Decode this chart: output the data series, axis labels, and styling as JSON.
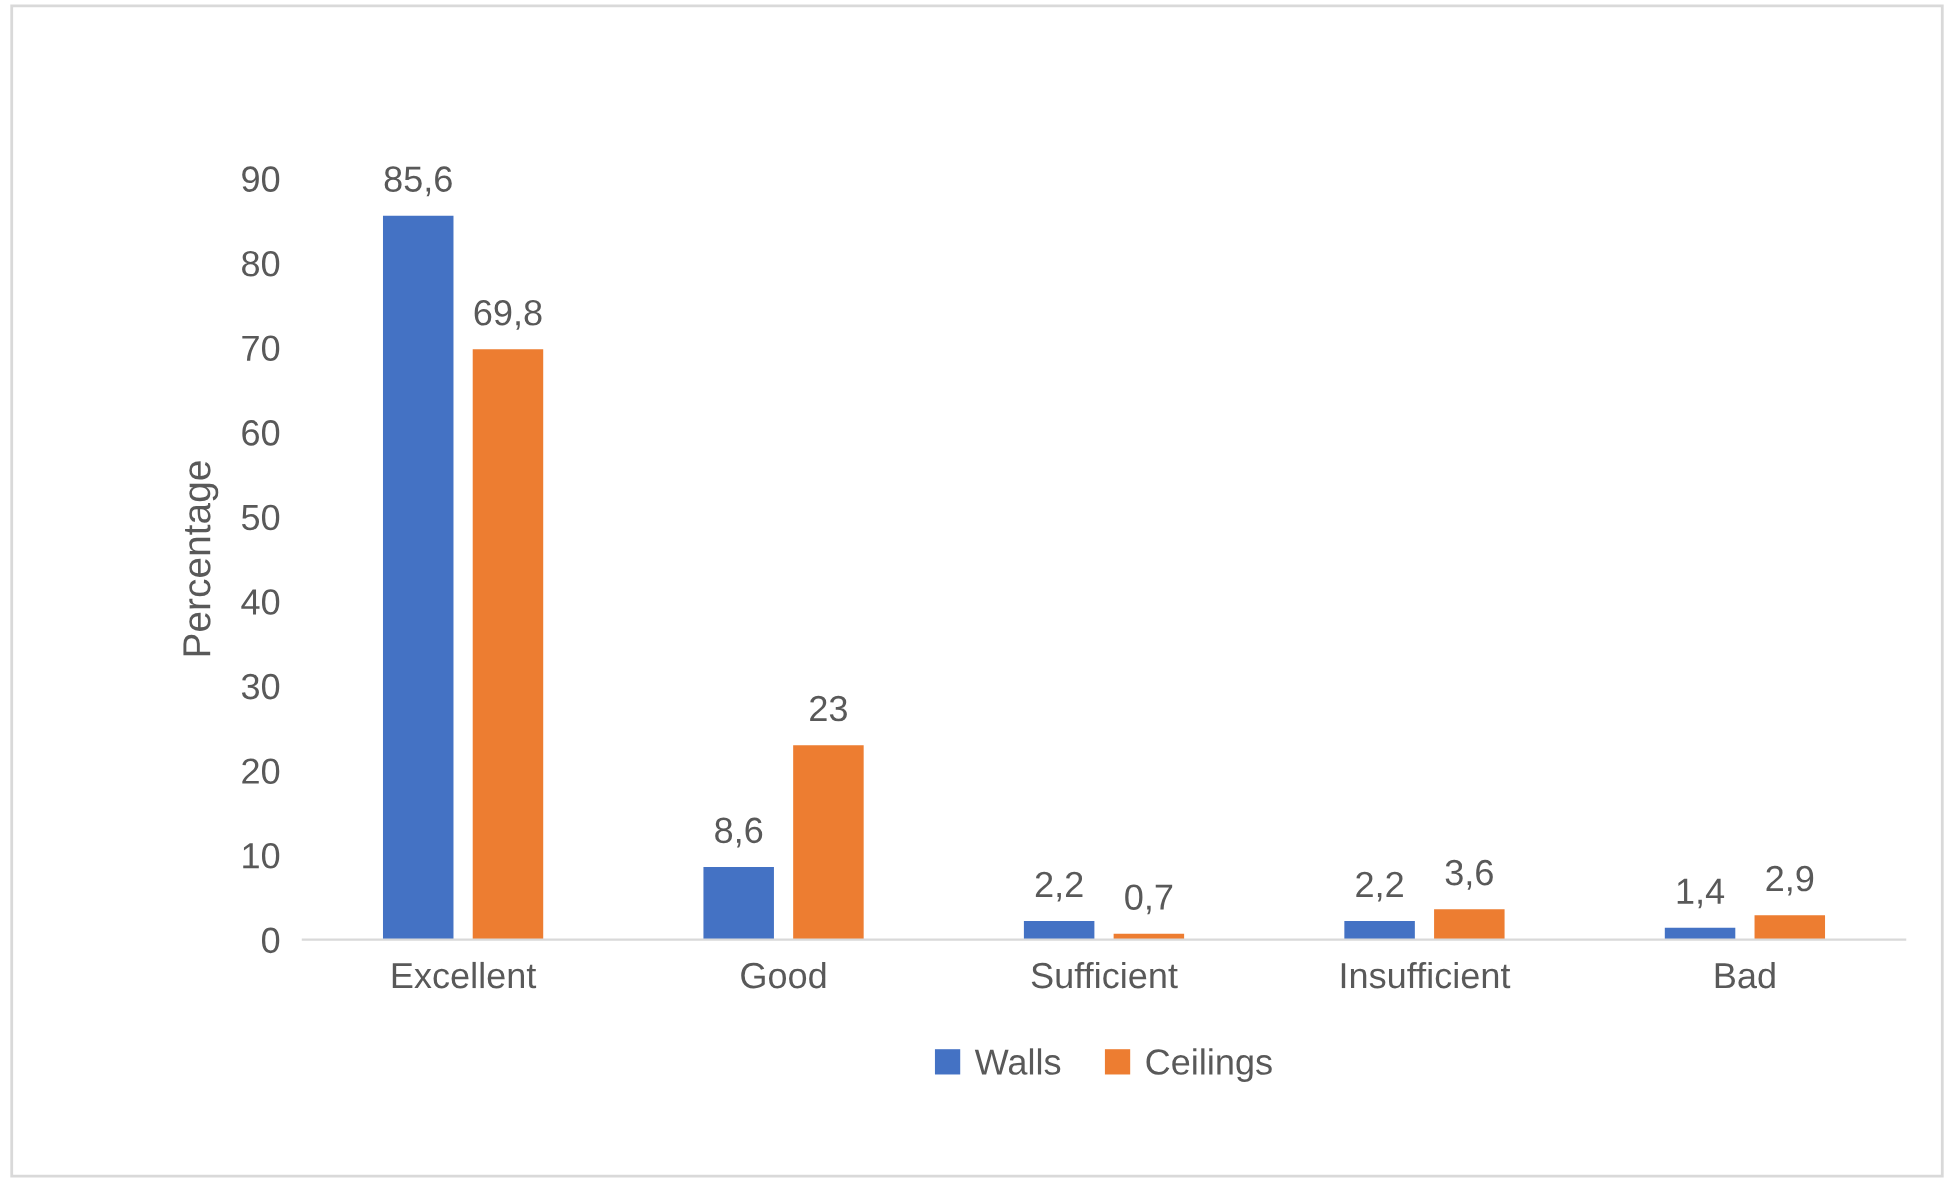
{
  "chart_data": {
    "type": "bar",
    "ylabel": "Percentage",
    "categories": [
      "Excellent",
      "Good",
      "Sufficient",
      "Insufficient",
      "Bad"
    ],
    "series": [
      {
        "name": "Walls",
        "color": "#4472c4",
        "values": [
          85.6,
          8.6,
          2.2,
          2.2,
          1.4
        ],
        "value_labels": [
          "85,6",
          "8,6",
          "2,2",
          "2,2",
          "1,4"
        ]
      },
      {
        "name": "Ceilings",
        "color": "#ed7d31",
        "values": [
          69.8,
          23,
          0.7,
          3.6,
          2.9
        ],
        "value_labels": [
          "69,8",
          "23",
          "0,7",
          "3,6",
          "2,9"
        ]
      }
    ],
    "ylim": [
      0,
      90
    ],
    "yticks": [
      0,
      10,
      20,
      30,
      40,
      50,
      60,
      70,
      80,
      90
    ],
    "grid": false,
    "legend": "bottom"
  }
}
